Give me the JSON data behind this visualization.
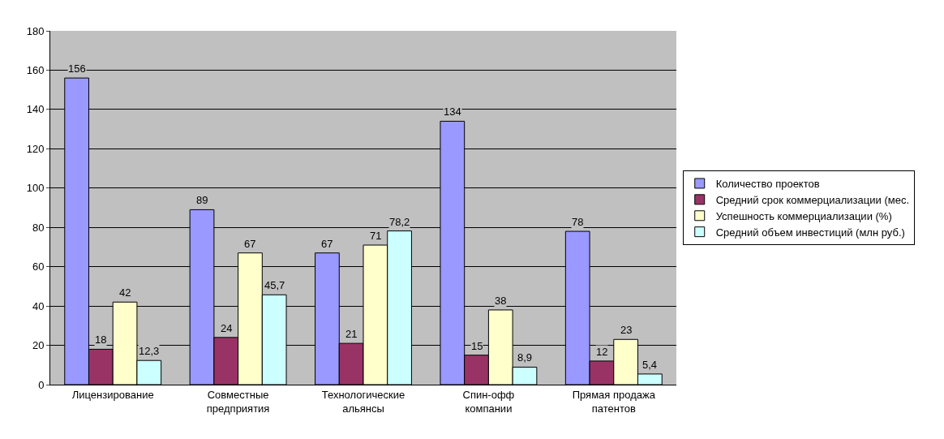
{
  "chart_data": {
    "type": "bar",
    "categories": [
      "Лицензирование",
      "Совместные\nпредприятия",
      "Технологические\nальянсы",
      "Спин-офф\nкомпании",
      "Прямая продажа\nпатентов"
    ],
    "series": [
      {
        "name": "Количество проектов",
        "color": "#9999ff",
        "values": [
          156,
          89,
          67,
          134,
          78
        ],
        "value_labels": [
          "156",
          "89",
          "67",
          "134",
          "78"
        ]
      },
      {
        "name": "Средний срок коммерциализации (мес.",
        "color": "#993366",
        "values": [
          18,
          24,
          21,
          15,
          12
        ],
        "value_labels": [
          "18",
          "24",
          "21",
          "15",
          "12"
        ]
      },
      {
        "name": "Успешность коммерциализации (%)",
        "color": "#ffffcc",
        "values": [
          42,
          67,
          71,
          38,
          23
        ],
        "value_labels": [
          "42",
          "67",
          "71",
          "38",
          "23"
        ]
      },
      {
        "name": "Средний объем инвестиций (млн руб.)",
        "color": "#ccffff",
        "values": [
          12.3,
          45.7,
          78.2,
          8.9,
          5.4
        ],
        "value_labels": [
          "12,3",
          "45,7",
          "78,2",
          "8,9",
          "5,4"
        ]
      }
    ],
    "ylim": [
      0,
      180
    ],
    "yticks": [
      0,
      20,
      40,
      60,
      80,
      100,
      120,
      140,
      160,
      180
    ],
    "grid": "y",
    "legend": "right"
  }
}
